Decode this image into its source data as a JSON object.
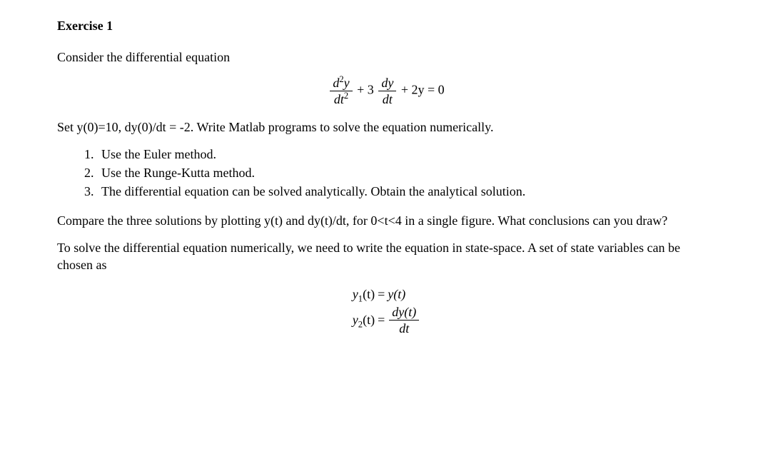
{
  "heading": "Exercise 1",
  "intro": "Consider the differential equation",
  "equation_main": {
    "frac1_num_var": "d",
    "frac1_num_sup": "2",
    "frac1_num_var2": "y",
    "frac1_den_var1": "dt",
    "frac1_den_sup": "2",
    "plus1": " + 3",
    "frac2_num": "dy",
    "frac2_den": "dt",
    "tail": " + 2y = 0"
  },
  "set_line": "Set y(0)=10, dy(0)/dt = -2. Write Matlab programs to solve the equation numerically.",
  "tasks": [
    "Use the Euler method.",
    "Use the Runge-Kutta method.",
    "The differential equation can be solved analytically. Obtain the analytical solution."
  ],
  "compare_line": "Compare the three solutions by plotting y(t) and dy(t)/dt, for 0<t<4 in a single figure. What conclusions can you draw?",
  "statespace_line": "To solve the differential equation numerically, we need to write the equation in state-space. A set of state variables can be chosen as",
  "state_eq": {
    "row1_left_var": "y",
    "row1_left_sub": "1",
    "row1_left_arg": "(t)",
    "row1_eq": " = ",
    "row1_right": "y(t)",
    "row2_left_var": "y",
    "row2_left_sub": "2",
    "row2_left_arg": "(t)",
    "row2_eq": " = ",
    "row2_frac_num": "dy(t)",
    "row2_frac_den": "dt"
  }
}
